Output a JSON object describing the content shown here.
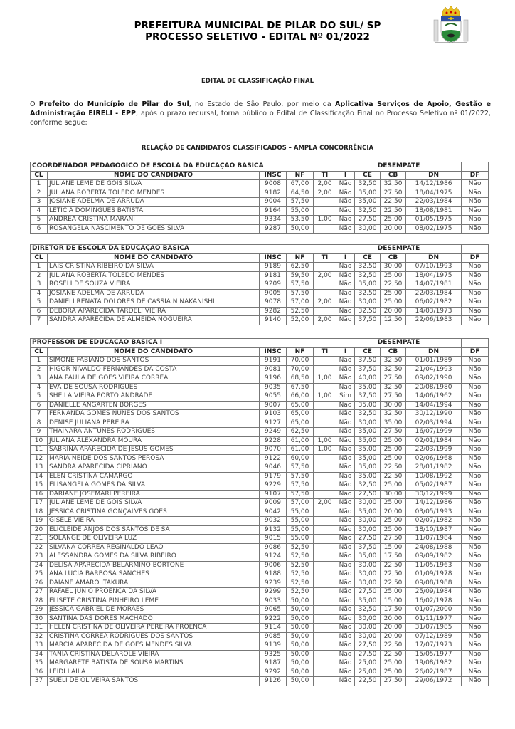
{
  "header": {
    "title_line1": "PREFEITURA MUNICIPAL DE PILAR DO SUL/ SP",
    "title_line2": "PROCESSO SELETIVO - EDITAL Nº 01/2022",
    "logo_icon": "municipal-coat-of-arms"
  },
  "subtitle": "EDITAL DE CLASSIFICAÇÃO FINAL",
  "paragraph": {
    "p1": "O ",
    "b1": "Prefeito do Município de Pilar do Sul",
    "p2": ", no Estado de São Paulo, por meio da ",
    "b2": "Aplicativa Serviços de Apoio, Gestão e Administração EIRELI - EPP",
    "p3": ", após o prazo recursal, torna público o Edital de Classificação Final no Processo Seletivo nº 01/2022, conforme segue:"
  },
  "section_title": "RELAÇÃO DE CANDIDATOS CLASSIFICADOS – AMPLA CONCORRÊNCIA",
  "columns": {
    "cl": "CL",
    "name": "NOME DO CANDIDATO",
    "insc": "INSC",
    "nf": "NF",
    "ti": "TI",
    "desempate": "DESEMPATE",
    "i": "I",
    "ce": "CE",
    "cb": "CB",
    "dn": "DN",
    "df": "DF"
  },
  "tables": [
    {
      "title": "COORDENADOR PEDAGÓGICO DE ESCOLA DA EDUCAÇÃO BÁSICA",
      "rows": [
        [
          "1",
          "JULIANE LEME DE GÓIS SILVA",
          "9008",
          "67,00",
          "2,00",
          "Não",
          "32,50",
          "32,50",
          "14/12/1986",
          "Não"
        ],
        [
          "2",
          "JULIANA ROBERTA TOLEDO MENDES",
          "9182",
          "64,50",
          "2,00",
          "Não",
          "35,00",
          "27,50",
          "18/04/1975",
          "Não"
        ],
        [
          "3",
          "JOSIANE ADELMA DE ARRUDA",
          "9004",
          "57,50",
          "",
          "Não",
          "35,00",
          "22,50",
          "22/03/1984",
          "Não"
        ],
        [
          "4",
          "LETICIA DOMINGUES BATISTA",
          "9164",
          "55,00",
          "",
          "Não",
          "32,50",
          "22,50",
          "18/08/1981",
          "Não"
        ],
        [
          "5",
          "ANDRÉA CRISTINA MARANI",
          "9334",
          "53,50",
          "1,00",
          "Não",
          "27,50",
          "25,00",
          "01/05/1975",
          "Não"
        ],
        [
          "6",
          "ROSANGELA NASCIMENTO DE GÓES SILVA",
          "9287",
          "50,00",
          "",
          "Não",
          "30,00",
          "20,00",
          "08/02/1975",
          "Não"
        ]
      ]
    },
    {
      "title": "DIRETOR DE ESCOLA DA EDUCAÇÃO BÁSICA",
      "rows": [
        [
          "1",
          "LAIS CRISTINA RIBEIRO DA SILVA",
          "9189",
          "62,50",
          "",
          "Não",
          "32,50",
          "30,00",
          "07/10/1993",
          "Não"
        ],
        [
          "2",
          "JULIANA ROBERTA TOLEDO MENDES",
          "9181",
          "59,50",
          "2,00",
          "Não",
          "32,50",
          "25,00",
          "18/04/1975",
          "Não"
        ],
        [
          "3",
          "ROSELI DE SOUZA VIEIRA",
          "9209",
          "57,50",
          "",
          "Não",
          "35,00",
          "22,50",
          "14/07/1981",
          "Não"
        ],
        [
          "4",
          "JOSIANE ADELMA DE ARRUDA",
          "9005",
          "57,50",
          "",
          "Não",
          "32,50",
          "25,00",
          "22/03/1984",
          "Não"
        ],
        [
          "5",
          "DANIELI RENATA DOLORES DE CÁSSIA N NAKANISHI",
          "9078",
          "57,00",
          "2,00",
          "Não",
          "30,00",
          "25,00",
          "06/02/1982",
          "Não"
        ],
        [
          "6",
          "DÉBORA APARECIDA TARDELI VIEIRA",
          "9282",
          "52,50",
          "",
          "Não",
          "32,50",
          "20,00",
          "14/03/1973",
          "Não"
        ],
        [
          "7",
          "SANDRA APARECIDA DE ALMEIDA NOGUEIRA",
          "9140",
          "52,00",
          "2,00",
          "Não",
          "37,50",
          "12,50",
          "22/06/1983",
          "Não"
        ]
      ]
    },
    {
      "title": "PROFESSOR DE EDUCAÇÃO BÁSICA I",
      "rows": [
        [
          "1",
          "SIMONE FABIANO DOS SANTOS",
          "9191",
          "70,00",
          "",
          "Não",
          "37,50",
          "32,50",
          "01/01/1989",
          "Não"
        ],
        [
          "2",
          "HIGOR NIVALDO FERNANDES DA COSTA",
          "9081",
          "70,00",
          "",
          "Não",
          "37,50",
          "32,50",
          "21/04/1993",
          "Não"
        ],
        [
          "3",
          "ANA PAULA DE GOES VIEIRA CORRÊA",
          "9196",
          "68,50",
          "1,00",
          "Não",
          "40,00",
          "27,50",
          "09/02/1990",
          "Não"
        ],
        [
          "4",
          "EVA DE SOUSA RODRIGUES",
          "9035",
          "67,50",
          "",
          "Não",
          "35,00",
          "32,50",
          "20/08/1980",
          "Não"
        ],
        [
          "5",
          "SHEILA VIEIRA PORTO ANDRADE",
          "9055",
          "66,00",
          "1,00",
          "Sim",
          "37,50",
          "27,50",
          "14/06/1962",
          "Não"
        ],
        [
          "6",
          "DANIELLE ANGARTEN BORGES",
          "9007",
          "65,00",
          "",
          "Não",
          "35,00",
          "30,00",
          "14/04/1994",
          "Não"
        ],
        [
          "7",
          "FERNANDA GOMES NUNES DOS SANTOS",
          "9103",
          "65,00",
          "",
          "Não",
          "32,50",
          "32,50",
          "30/12/1990",
          "Não"
        ],
        [
          "8",
          "DENISE JULIANA PEREIRA",
          "9127",
          "65,00",
          "",
          "Não",
          "30,00",
          "35,00",
          "02/03/1994",
          "Não"
        ],
        [
          "9",
          "THAINARA ANTUNES RODRIGUES",
          "9249",
          "62,50",
          "",
          "Não",
          "35,00",
          "27,50",
          "16/07/1999",
          "Não"
        ],
        [
          "10",
          "JULIANA ALEXANDRA MOURA",
          "9228",
          "61,00",
          "1,00",
          "Não",
          "35,00",
          "25,00",
          "02/01/1984",
          "Não"
        ],
        [
          "11",
          "SABRINA APARECIDA DE JESUS GOMES",
          "9070",
          "61,00",
          "1,00",
          "Não",
          "35,00",
          "25,00",
          "22/03/1999",
          "Não"
        ],
        [
          "12",
          "MARIA NEIDE DOS SANTOS PEROSA",
          "9122",
          "60,00",
          "",
          "Não",
          "35,00",
          "25,00",
          "02/06/1968",
          "Não"
        ],
        [
          "13",
          "SANDRA APARECIDA CIPRIANO",
          "9046",
          "57,50",
          "",
          "Não",
          "35,00",
          "22,50",
          "28/01/1982",
          "Não"
        ],
        [
          "14",
          "ELEN CRISTINA CAMARGO",
          "9179",
          "57,50",
          "",
          "Não",
          "35,00",
          "22,50",
          "10/08/1992",
          "Não"
        ],
        [
          "15",
          "ELISANGELA GOMES DA SILVA",
          "9229",
          "57,50",
          "",
          "Não",
          "32,50",
          "25,00",
          "05/02/1987",
          "Não"
        ],
        [
          "16",
          "DARIANE JOSEMARI PEREIRA",
          "9107",
          "57,50",
          "",
          "Não",
          "27,50",
          "30,00",
          "30/12/1999",
          "Não"
        ],
        [
          "17",
          "JULIANE LEME DE GÓIS SILVA",
          "9009",
          "57,00",
          "2,00",
          "Não",
          "30,00",
          "25,00",
          "14/12/1986",
          "Não"
        ],
        [
          "18",
          "JÉSSICA CRISTINA GONÇALVES GÓES",
          "9042",
          "55,00",
          "",
          "Não",
          "35,00",
          "20,00",
          "03/05/1993",
          "Não"
        ],
        [
          "19",
          "GISELE VIEIRA",
          "9032",
          "55,00",
          "",
          "Não",
          "30,00",
          "25,00",
          "02/07/1982",
          "Não"
        ],
        [
          "20",
          "ELICLEIDE ANJOS DOS SANTOS DE SÁ",
          "9132",
          "55,00",
          "",
          "Não",
          "30,00",
          "25,00",
          "18/10/1987",
          "Não"
        ],
        [
          "21",
          "SOLANGE DE OLIVEIRA LUZ",
          "9015",
          "55,00",
          "",
          "Não",
          "27,50",
          "27,50",
          "11/07/1984",
          "Não"
        ],
        [
          "22",
          "SILVANA CORRÊA REGINALDO LEÃO",
          "9086",
          "52,50",
          "",
          "Não",
          "37,50",
          "15,00",
          "24/08/1988",
          "Não"
        ],
        [
          "23",
          "ALESSANDRA GOMES DA SILVA RIBEIRO",
          "9124",
          "52,50",
          "",
          "Não",
          "35,00",
          "17,50",
          "09/09/1982",
          "Não"
        ],
        [
          "24",
          "DELISA APARECIDA BELARMINO BORTONE",
          "9006",
          "52,50",
          "",
          "Não",
          "30,00",
          "22,50",
          "11/05/1963",
          "Não"
        ],
        [
          "25",
          "ANA LUCIA BARBOSA SANCHES",
          "9188",
          "52,50",
          "",
          "Não",
          "30,00",
          "22,50",
          "01/09/1978",
          "Não"
        ],
        [
          "26",
          "DAIANE AMARO ITAKURA",
          "9239",
          "52,50",
          "",
          "Não",
          "30,00",
          "22,50",
          "09/08/1988",
          "Não"
        ],
        [
          "27",
          "RAFAEL JUNIO PROENÇA DA SILVA",
          "9299",
          "52,50",
          "",
          "Não",
          "27,50",
          "25,00",
          "25/09/1984",
          "Não"
        ],
        [
          "28",
          "ELISETE CRISTINA PINHEIRO LEME",
          "9033",
          "50,00",
          "",
          "Não",
          "35,00",
          "15,00",
          "16/02/1978",
          "Não"
        ],
        [
          "29",
          "JÉSSICA GABRIEL DE MORAES",
          "9065",
          "50,00",
          "",
          "Não",
          "32,50",
          "17,50",
          "01/07/2000",
          "Não"
        ],
        [
          "30",
          "SANTINA DAS DORES MACHADO",
          "9222",
          "50,00",
          "",
          "Não",
          "30,00",
          "20,00",
          "01/11/1977",
          "Não"
        ],
        [
          "31",
          "HELEN CRISTINA DE OLIVEIRA PEREIRA PROENCA",
          "9114",
          "50,00",
          "",
          "Não",
          "30,00",
          "20,00",
          "31/07/1985",
          "Não"
        ],
        [
          "32",
          "CRISTINA CORREA RODRIGUES DOS SANTOS",
          "9085",
          "50,00",
          "",
          "Não",
          "30,00",
          "20,00",
          "07/12/1989",
          "Não"
        ],
        [
          "33",
          "MARCIA APARECIDA DE GOES MENDES SILVA",
          "9139",
          "50,00",
          "",
          "Não",
          "27,50",
          "22,50",
          "17/07/1973",
          "Não"
        ],
        [
          "34",
          "TÂNIA CRISTINA DELAROLE VIEIRA",
          "9325",
          "50,00",
          "",
          "Não",
          "27,50",
          "22,50",
          "15/05/1977",
          "Não"
        ],
        [
          "35",
          "MARGARETE BATISTA DE SOUSA MARTINS",
          "9187",
          "50,00",
          "",
          "Não",
          "25,00",
          "25,00",
          "19/08/1982",
          "Não"
        ],
        [
          "36",
          "LEIDI LAILA",
          "9292",
          "50,00",
          "",
          "Não",
          "25,00",
          "25,00",
          "26/02/1987",
          "Não"
        ],
        [
          "37",
          "SUELI DE OLIVEIRA SANTOS",
          "9126",
          "50,00",
          "",
          "Não",
          "22,50",
          "27,50",
          "29/06/1972",
          "Não"
        ]
      ]
    }
  ]
}
